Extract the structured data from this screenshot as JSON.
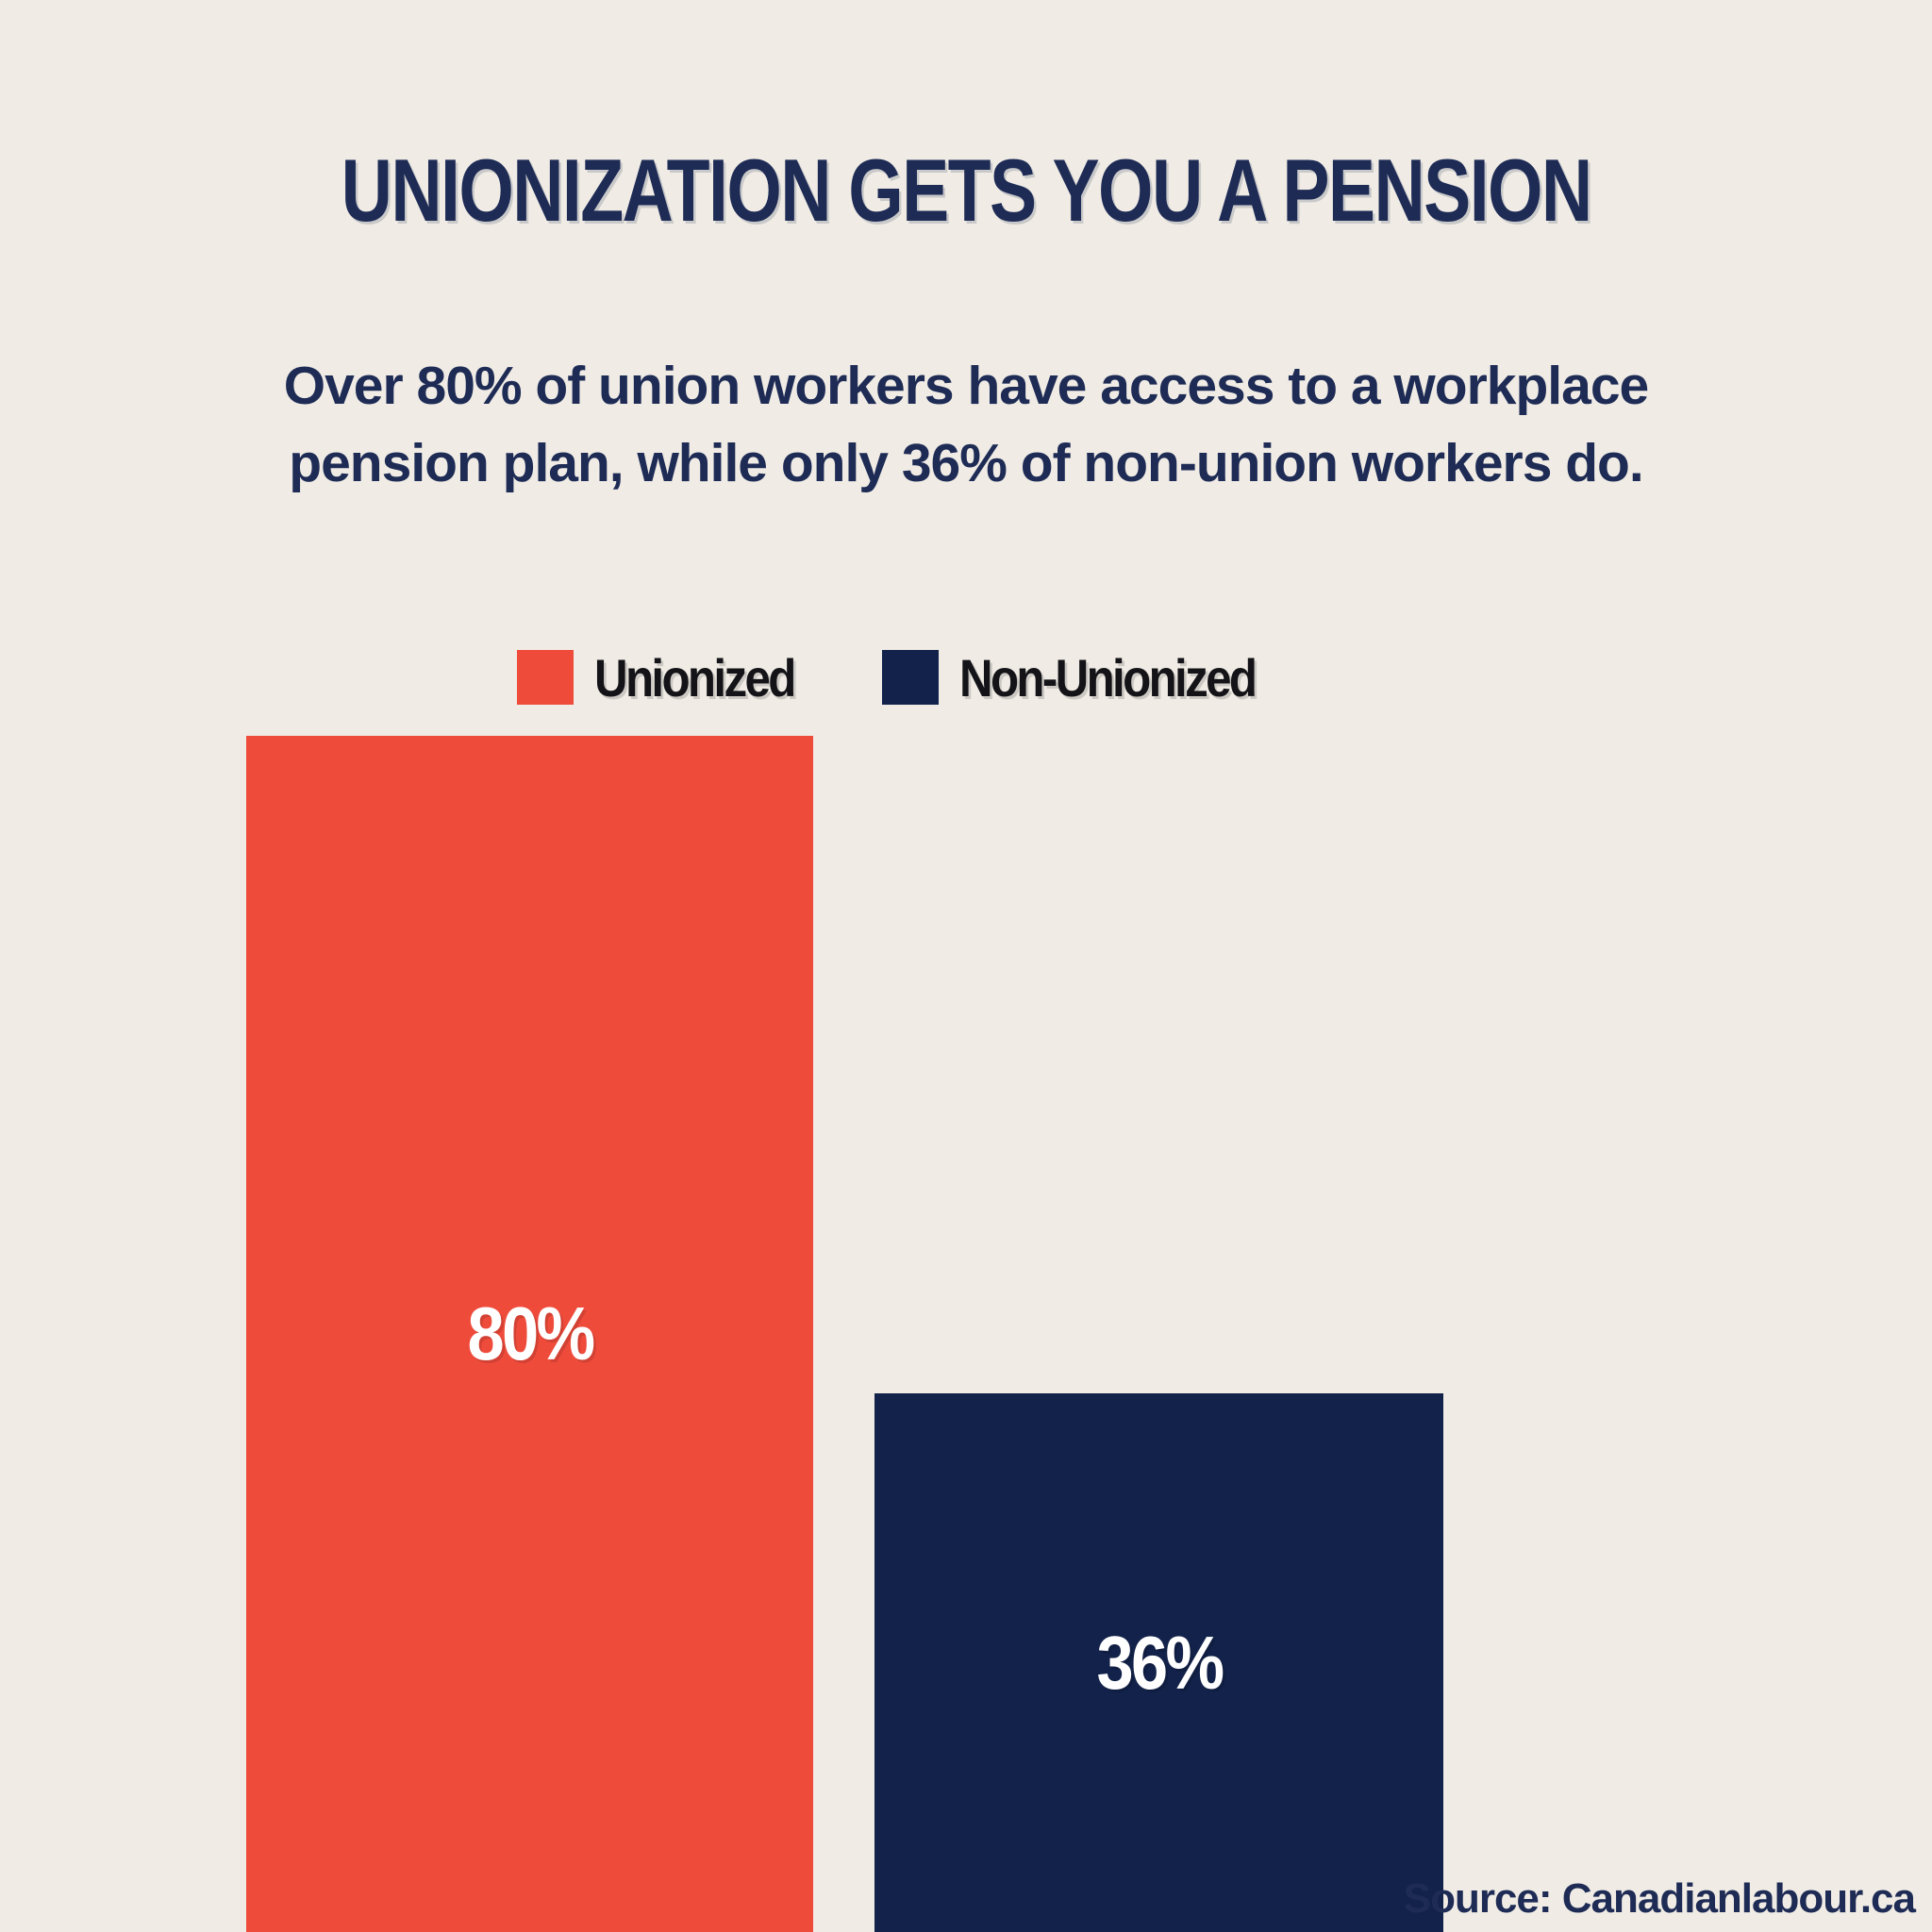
{
  "background_color": "#F0ECE5",
  "title": {
    "text": "UNIONIZATION GETS YOU A PENSION",
    "color": "#1E2B55"
  },
  "subtitle": {
    "line1": "Over 80% of union workers have access to a workplace",
    "line2": "pension plan, while only 36% of non-union workers do.",
    "color": "#1E2B55"
  },
  "legend": {
    "items": [
      {
        "label": "Unionized",
        "color": "#EF4B3B"
      },
      {
        "label": "Non-Unionized",
        "color": "#12224A"
      }
    ],
    "text_color": "#131318"
  },
  "chart_data": {
    "type": "bar",
    "title": "UNIONIZATION GETS YOU A PENSION",
    "categories": [
      "Unionized",
      "Non-Unionized"
    ],
    "values": [
      80,
      36
    ],
    "value_labels": [
      "80%",
      "36%"
    ],
    "colors": [
      "#EF4B3B",
      "#12224A"
    ],
    "value_label_color": "#FFFFFF",
    "ylim": [
      0,
      100
    ],
    "grid": false,
    "axes_visible": false,
    "legend_position": "top-left-of-chart",
    "orientation": "vertical",
    "baseline": "bottom-edge-of-image"
  },
  "source": {
    "text": "Source: Canadianlabour.ca",
    "color": "#1E2B55"
  }
}
